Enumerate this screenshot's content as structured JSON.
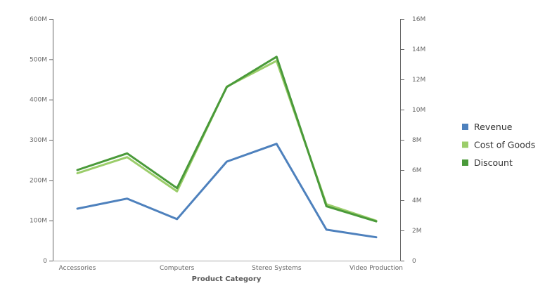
{
  "chart_data": {
    "type": "line",
    "categories": [
      "Accessories",
      "",
      "Computers",
      "",
      "Stereo Systems",
      "",
      "Video Production"
    ],
    "xlabel": "Product Category",
    "y_left": {
      "ticks": [
        "0",
        "100M",
        "200M",
        "300M",
        "400M",
        "500M",
        "600M"
      ],
      "range": [
        0,
        600000000
      ]
    },
    "y_right": {
      "ticks": [
        "0",
        "2M",
        "4M",
        "6M",
        "8M",
        "10M",
        "12M",
        "14M",
        "16M"
      ],
      "range": [
        0,
        16000000
      ]
    },
    "series": [
      {
        "name": "Revenue",
        "axis": "left",
        "color": "#4e81bd",
        "values": [
          129000000,
          154000000,
          103000000,
          246000000,
          290000000,
          77000000,
          58000000
        ]
      },
      {
        "name": "Cost of Goods",
        "axis": "left",
        "color": "#9bcd6a",
        "values": [
          217000000,
          257000000,
          172000000,
          432000000,
          496000000,
          140000000,
          99000000
        ]
      },
      {
        "name": "Discount",
        "axis": "right",
        "color": "#4a9a3a",
        "values": [
          6000000,
          7100000,
          4800000,
          11500000,
          13500000,
          3600000,
          2600000
        ]
      }
    ],
    "grid": false,
    "legend_position": "right"
  }
}
